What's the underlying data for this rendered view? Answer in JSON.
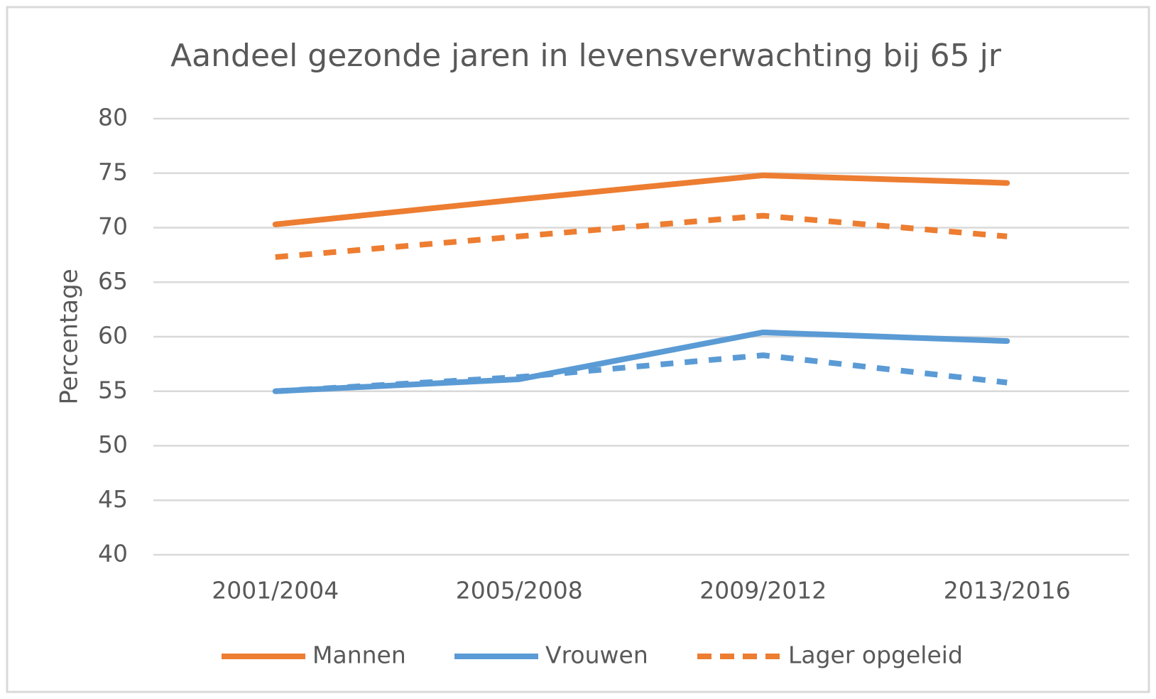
{
  "chart_data": {
    "type": "line",
    "title": "Aandeel gezonde jaren in levensverwachting bij 65 jr",
    "y_label": "Percentage",
    "categories": [
      "2001/2004",
      "2005/2008",
      "2009/2012",
      "2013/2016"
    ],
    "series": [
      {
        "name": "Mannen",
        "color": "#ed7d31",
        "dashed": false,
        "values": [
          70.3,
          72.6,
          74.8,
          74.1
        ]
      },
      {
        "name": "Vrouwen",
        "color": "#5b9bd5",
        "dashed": false,
        "values": [
          55.0,
          56.1,
          60.4,
          59.6
        ]
      },
      {
        "name": "Lager opgeleid",
        "color": "#ed7d31",
        "dashed": true,
        "values": [
          67.3,
          69.2,
          71.1,
          69.2
        ]
      },
      {
        "color": "#5b9bd5",
        "dashed": true,
        "values": [
          55.0,
          56.3,
          58.3,
          55.8
        ]
      }
    ],
    "ylim": [
      40,
      80
    ],
    "yticks": [
      40,
      45,
      50,
      55,
      60,
      65,
      70,
      75,
      80
    ],
    "grid": true,
    "legend": "bottom"
  }
}
